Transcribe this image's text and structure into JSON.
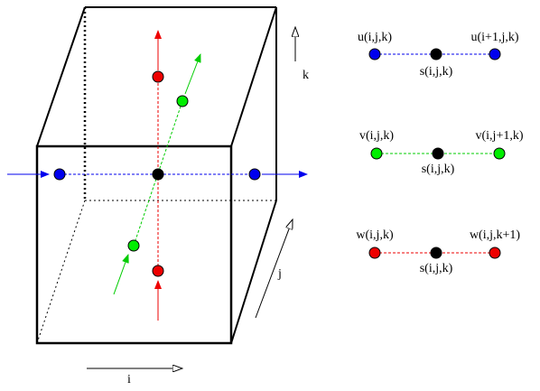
{
  "axes": {
    "i": "i",
    "j": "j",
    "k": "k"
  },
  "colors": {
    "u": "#0000ee",
    "v": "#00dd00",
    "w": "#ee0000",
    "s": "#000000",
    "cube": "#000000"
  },
  "legend": [
    {
      "key": "u",
      "left_label": "u(i,j,k)",
      "right_label": "u(i+1,j,k)",
      "center_label": "s(i,j,k)"
    },
    {
      "key": "v",
      "left_label": "v(i,j,k)",
      "right_label": "v(i,j+1,k)",
      "center_label": "s(i,j,k)"
    },
    {
      "key": "w",
      "left_label": "w(i,j,k)",
      "right_label": "w(i,j,k+1)",
      "center_label": "s(i,j,k)"
    }
  ]
}
